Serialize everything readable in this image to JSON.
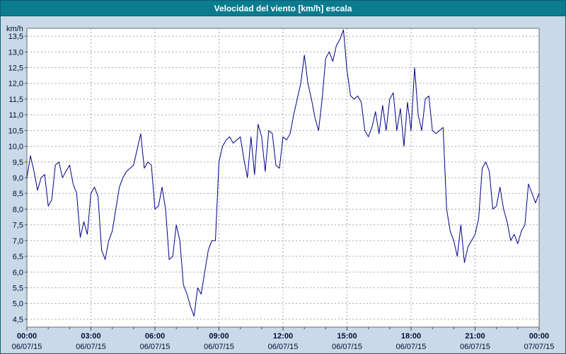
{
  "window": {
    "title": "Velocidad del viento [km/h] escala"
  },
  "colors": {
    "titlebar_bg": "#0b7b8e",
    "window_bg": "#c9d9e8",
    "plot_bg": "#ffffff",
    "plot_border": "#6b6b6b",
    "grid": "#a6a6a6",
    "axis_text": "#0a0a33",
    "line": "#00008b"
  },
  "chart_data": {
    "type": "line",
    "title": "Velocidad del viento [km/h] escala",
    "xlabel": "",
    "ylabel": "km/h",
    "ylim": [
      4.25,
      13.75
    ],
    "x_hours_span": 24,
    "grid": "dashed",
    "legend_position": "none",
    "y_ticks": [
      4.5,
      5.0,
      5.5,
      6.0,
      6.5,
      7.0,
      7.5,
      8.0,
      8.5,
      9.0,
      9.5,
      10.0,
      10.5,
      11.0,
      11.5,
      12.0,
      12.5,
      13.0,
      13.5
    ],
    "y_tick_labels": [
      "4,5",
      "5,0",
      "5,5",
      "6,0",
      "6,5",
      "7,0",
      "7,5",
      "8,0",
      "8,5",
      "9,0",
      "9,5",
      "10,0",
      "10,5",
      "11,0",
      "11,5",
      "12,0",
      "12,5",
      "13,0",
      "13,5"
    ],
    "x_ticks": [
      {
        "hour": 0,
        "time": "00:00",
        "date": "06/07/15"
      },
      {
        "hour": 3,
        "time": "03:00",
        "date": "06/07/15"
      },
      {
        "hour": 6,
        "time": "06:00",
        "date": "06/07/15"
      },
      {
        "hour": 9,
        "time": "09:00",
        "date": "06/07/15"
      },
      {
        "hour": 12,
        "time": "12:00",
        "date": "06/07/15"
      },
      {
        "hour": 15,
        "time": "15:00",
        "date": "06/07/15"
      },
      {
        "hour": 18,
        "time": "18:00",
        "date": "06/07/15"
      },
      {
        "hour": 21,
        "time": "21:00",
        "date": "06/07/15"
      },
      {
        "hour": 24,
        "time": "00:00",
        "date": "07/07/15"
      }
    ],
    "sample_interval_minutes": 10,
    "series": [
      {
        "name": "Velocidad del viento",
        "color": "#00008b",
        "values": [
          9.0,
          9.7,
          9.2,
          8.6,
          9.0,
          9.1,
          8.1,
          8.3,
          9.4,
          9.5,
          9.0,
          9.2,
          9.4,
          8.8,
          8.5,
          7.1,
          7.6,
          7.2,
          8.5,
          8.7,
          8.4,
          6.7,
          6.4,
          7.0,
          7.3,
          8.0,
          8.7,
          9.0,
          9.2,
          9.3,
          9.4,
          9.9,
          10.4,
          9.3,
          9.5,
          9.4,
          8.0,
          8.1,
          8.7,
          8.0,
          6.4,
          6.5,
          7.5,
          7.0,
          5.6,
          5.3,
          4.9,
          4.6,
          5.5,
          5.3,
          6.0,
          6.7,
          7.0,
          7.0,
          9.5,
          10.0,
          10.2,
          10.3,
          10.1,
          10.2,
          10.3,
          9.6,
          9.0,
          10.3,
          9.1,
          10.7,
          10.3,
          9.2,
          10.5,
          10.4,
          9.4,
          9.3,
          10.3,
          10.2,
          10.4,
          11.0,
          11.5,
          12.0,
          12.9,
          12.0,
          11.5,
          10.9,
          10.5,
          11.5,
          12.8,
          13.0,
          12.7,
          13.2,
          13.4,
          13.7,
          12.4,
          11.6,
          11.5,
          11.6,
          11.4,
          10.5,
          10.3,
          10.6,
          11.1,
          10.4,
          11.3,
          10.5,
          11.5,
          11.7,
          10.5,
          11.2,
          10.0,
          11.4,
          10.5,
          12.5,
          11.0,
          10.5,
          11.5,
          11.6,
          10.5,
          10.4,
          10.5,
          10.6,
          8.0,
          7.3,
          7.0,
          6.5,
          7.5,
          6.3,
          6.8,
          7.0,
          7.2,
          7.7,
          9.3,
          9.5,
          9.2,
          8.0,
          8.1,
          8.7,
          8.0,
          7.6,
          7.0,
          7.2,
          6.9,
          7.3,
          7.5,
          8.8,
          8.5,
          8.2,
          8.5
        ]
      }
    ]
  }
}
